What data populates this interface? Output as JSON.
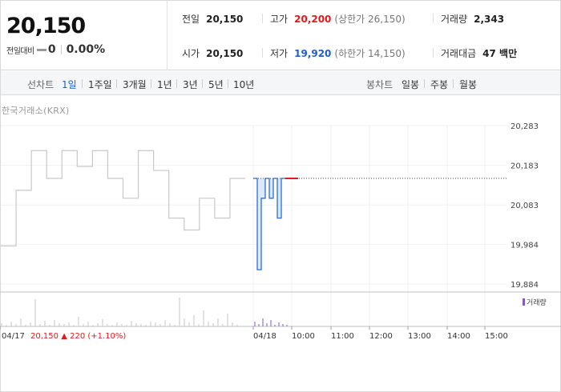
{
  "header": {
    "current_price": "20,150",
    "change_label": "전일대비",
    "change_value": "0",
    "change_pct": "0.00%",
    "stats": {
      "prev_close_label": "전일",
      "prev_close": "20,150",
      "open_label": "시가",
      "open": "20,150",
      "high_label": "고가",
      "high": "20,200",
      "upper_limit": "(상한가 26,150)",
      "low_label": "저가",
      "low": "19,920",
      "lower_limit": "(하한가 14,150)",
      "volume_label": "거래량",
      "volume": "2,343",
      "amount_label": "거래대금",
      "amount": "47 백만"
    }
  },
  "toolbar": {
    "line_label": "선차트",
    "line_periods": [
      "1일",
      "1주일",
      "3개월",
      "1년",
      "3년",
      "5년",
      "10년"
    ],
    "active_period": "1일",
    "candle_label": "봉차트",
    "candle_periods": [
      "일봉",
      "주봉",
      "월봉"
    ]
  },
  "chart": {
    "exchange": "한국거래소(KRX)",
    "y_ticks": [
      "20,283",
      "20,183",
      "20,083",
      "19,984",
      "19,884"
    ],
    "volume_legend": "거래량",
    "x_labels": [
      "04/18",
      "10:00",
      "11:00",
      "12:00",
      "13:00",
      "14:00",
      "15:00"
    ],
    "prev_day": {
      "date": "04/17",
      "close": "20,150",
      "arrow": "▲",
      "change": "220",
      "pct": "(+1.10%)"
    },
    "colors": {
      "prev_line": "#c8c8c8",
      "today_line": "#2a6fd6",
      "today_fill": "#dbe9fb",
      "ref_line": "#444444",
      "up": "#e01b1b",
      "volume": "#7a5cc8"
    }
  },
  "chart_data": {
    "type": "line",
    "title": "",
    "xlabel": "",
    "ylabel": "",
    "ylim": [
      19884,
      20283
    ],
    "y_ticks": [
      20283,
      20183,
      20083,
      19984,
      19884
    ],
    "series": [
      {
        "x": [
          "04/17",
          "04/17",
          "04/17",
          "04/17",
          "04/17",
          "04/17",
          "04/17",
          "04/17",
          "04/17",
          "04/17",
          "04/17",
          "04/17",
          "04/17",
          "04/17",
          "04/17",
          "04/17",
          "04/17"
        ],
        "values": [
          19980,
          20120,
          20220,
          20150,
          20220,
          20180,
          20220,
          20150,
          20100,
          20220,
          20170,
          20050,
          20020,
          20100,
          20050,
          20150,
          20150
        ]
      },
      {
        "x": [
          "04/18 09:00",
          "09:05",
          "09:10",
          "09:15",
          "09:20",
          "09:25",
          "09:30",
          "09:35",
          "09:40"
        ],
        "values": [
          20150,
          19920,
          20100,
          20150,
          20100,
          20150,
          20050,
          20150,
          20150
        ]
      }
    ]
  }
}
